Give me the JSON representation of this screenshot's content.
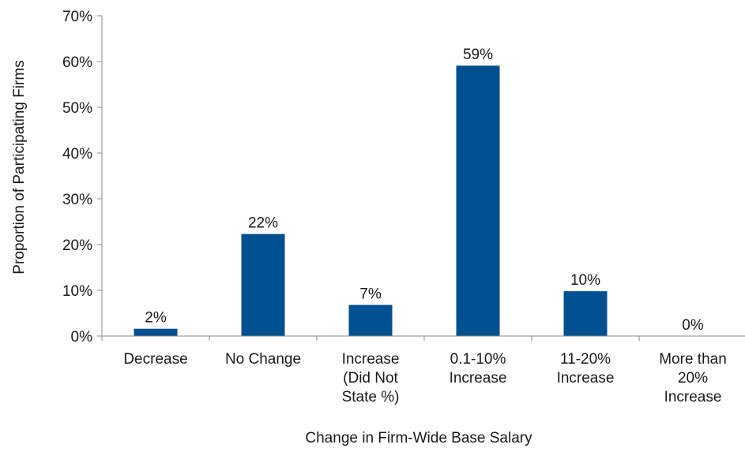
{
  "chart_data": {
    "type": "bar",
    "title": "",
    "xlabel": "Change in Firm-Wide Base Salary",
    "ylabel": "Proportion of Participating Firms",
    "ylim": [
      0,
      70
    ],
    "y_ticks": [
      "0%",
      "10%",
      "20%",
      "30%",
      "40%",
      "50%",
      "60%",
      "70%"
    ],
    "grid": false,
    "legend": "none",
    "bar_color": "#00508F",
    "categories": [
      [
        "Decrease"
      ],
      [
        "No Change"
      ],
      [
        "Increase",
        "(Did Not",
        "State %)"
      ],
      [
        "0.1-10%",
        "Increase"
      ],
      [
        "11-20%",
        "Increase"
      ],
      [
        "More than",
        "20%",
        "Increase"
      ]
    ],
    "values": [
      2,
      22,
      7,
      59,
      10,
      0
    ],
    "value_labels": [
      "2%",
      "22%",
      "7%",
      "59%",
      "10%",
      "0%"
    ],
    "label_values": [
      1.6,
      22.3,
      6.8,
      59.1,
      9.8,
      0
    ]
  }
}
